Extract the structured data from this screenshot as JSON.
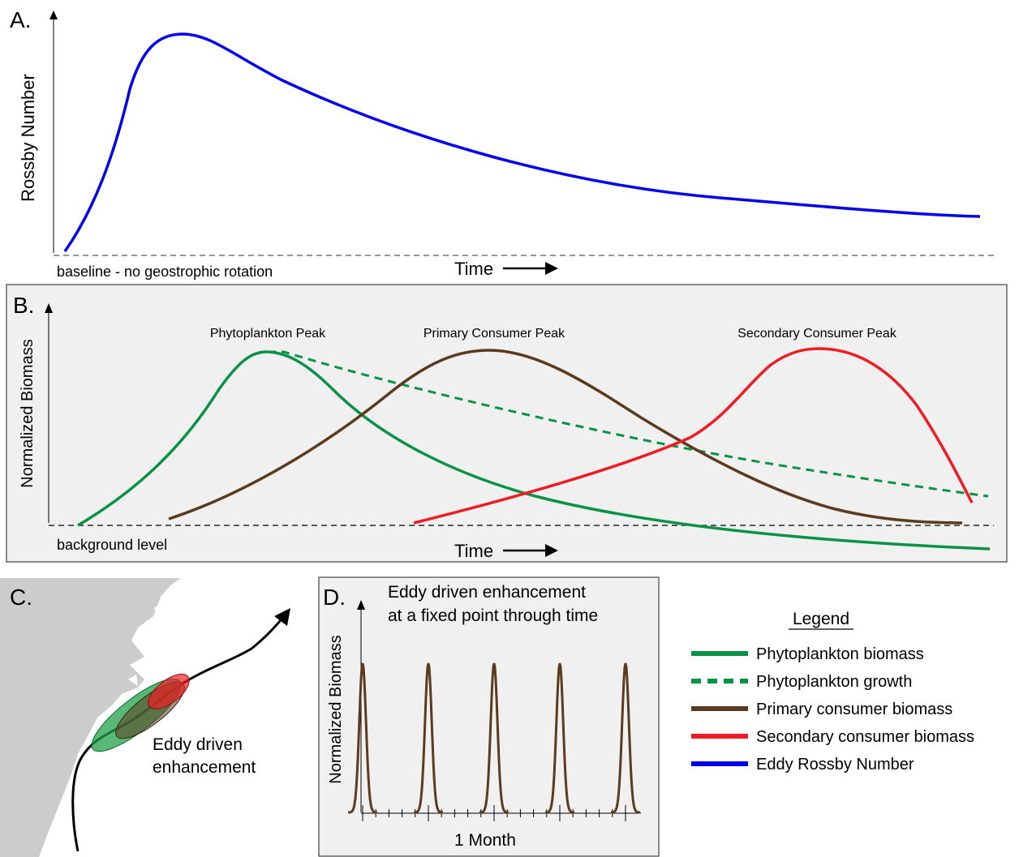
{
  "panel_a": {
    "letter": "A.",
    "ylabel": "Rossby Number",
    "xlabel": "Time",
    "baseline_label": "baseline - no geostrophic rotation"
  },
  "panel_b": {
    "letter": "B.",
    "ylabel": "Normalized Biomass",
    "xlabel": "Time",
    "baseline_label": "background level",
    "peak_labels": [
      "Phytoplankton Peak",
      "Primary Consumer Peak",
      "Secondary Consumer Peak"
    ]
  },
  "panel_c": {
    "letter": "C.",
    "annotation_line1": "Eddy driven",
    "annotation_line2": "enhancement"
  },
  "panel_d": {
    "letter": "D.",
    "title_line1": "Eddy driven enhancement",
    "title_line2": "at a fixed point through time",
    "ylabel": "Normalized Biomass",
    "xlabel": "1 Month",
    "pulse_count": 5
  },
  "legend": {
    "title": "Legend",
    "items": [
      {
        "label": "Phytoplankton biomass",
        "color": "#0a9247",
        "style": "solid"
      },
      {
        "label": "Phytoplankton growth",
        "color": "#0a9247",
        "style": "dashed"
      },
      {
        "label": "Primary consumer biomass",
        "color": "#5c3a1e",
        "style": "solid"
      },
      {
        "label": "Secondary consumer biomass",
        "color": "#ee1c24",
        "style": "solid"
      },
      {
        "label": "Eddy Rossby Number",
        "color": "#0000ee",
        "style": "solid"
      }
    ]
  },
  "colors": {
    "phytoplankton": "#0a9247",
    "primary_consumer": "#5c3a1e",
    "secondary_consumer": "#ee1c24",
    "rossby": "#0000ee",
    "panel_bg": "#f0f0f0",
    "land": "#cccccc"
  }
}
